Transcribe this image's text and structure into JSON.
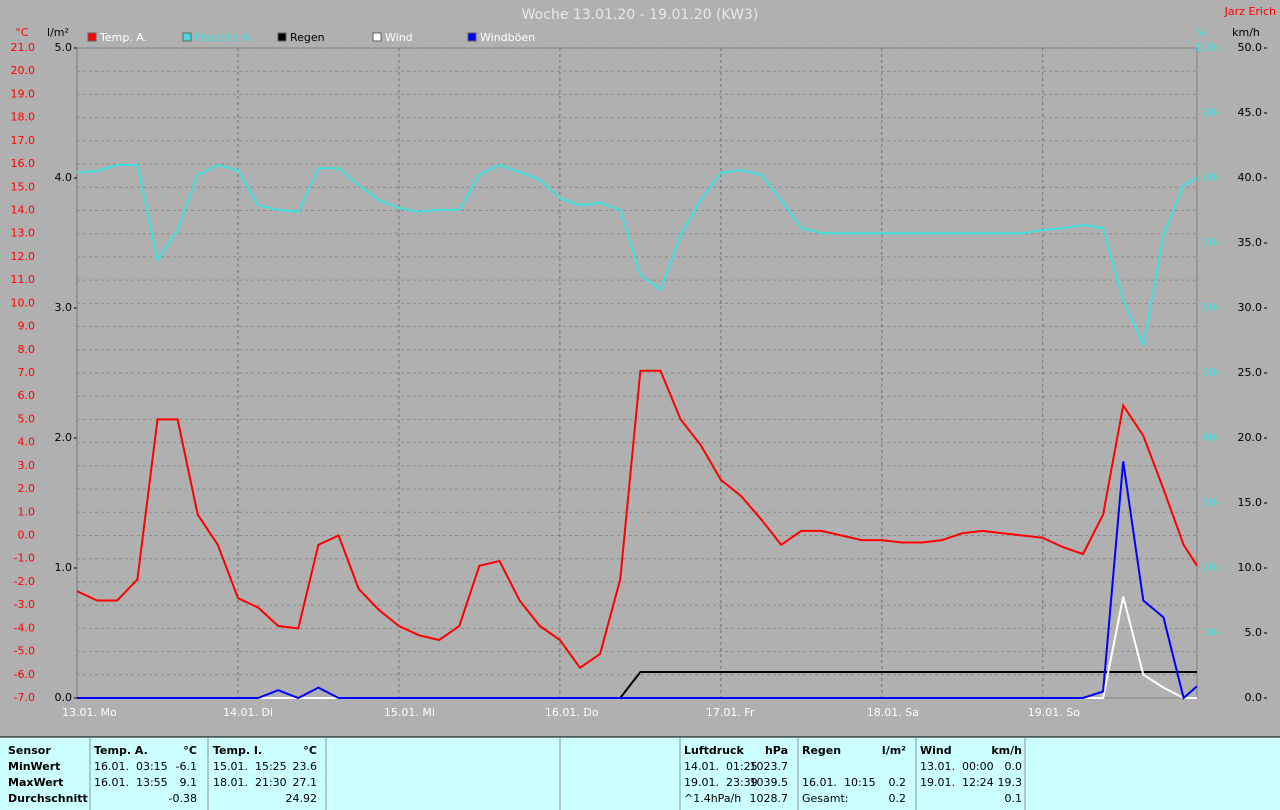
{
  "chart_data": {
    "type": "line",
    "title": "Woche 13.01.20 - 19.01.20 (KW3)",
    "author": "Jarz Erich",
    "y_label": "°C",
    "y3_label": "l/m²",
    "y2_label": "%",
    "y4_label": "km/h",
    "x": [
      0,
      3,
      6,
      9,
      12,
      15,
      18,
      21,
      24,
      27,
      30,
      33,
      36,
      39,
      42,
      45,
      48,
      51,
      54,
      57,
      60,
      63,
      66,
      69,
      72,
      75,
      78,
      81,
      84,
      87,
      90,
      93,
      96,
      99,
      102,
      105,
      108,
      111,
      114,
      117,
      120,
      123,
      126,
      129,
      132,
      135,
      138,
      141,
      144,
      147,
      150,
      153,
      156,
      159,
      162,
      165,
      167
    ],
    "xlim": [
      0,
      167
    ],
    "xticks": [
      {
        "value": 0,
        "label": "13.01. Mo"
      },
      {
        "value": 24,
        "label": "14.01. Di"
      },
      {
        "value": 48,
        "label": "15.01. Mi"
      },
      {
        "value": 72,
        "label": "16.01. Do"
      },
      {
        "value": 96,
        "label": "17.01. Fr"
      },
      {
        "value": 120,
        "label": "18.01. Sa"
      },
      {
        "value": 144,
        "label": "19.01. So"
      }
    ],
    "ylim": [
      -7,
      21
    ],
    "yticks": [
      {
        "value": -7,
        "label": "-7.0"
      },
      {
        "value": -6,
        "label": "-6.0"
      },
      {
        "value": -5,
        "label": "-5.0"
      },
      {
        "value": -4,
        "label": "-4.0"
      },
      {
        "value": -3,
        "label": "-3.0"
      },
      {
        "value": -2,
        "label": "-2.0"
      },
      {
        "value": -1,
        "label": "-1.0"
      },
      {
        "value": 0,
        "label": "0.0"
      },
      {
        "value": 1,
        "label": "1.0"
      },
      {
        "value": 2,
        "label": "2.0"
      },
      {
        "value": 3,
        "label": "3.0"
      },
      {
        "value": 4,
        "label": "4.0"
      },
      {
        "value": 5,
        "label": "5.0"
      },
      {
        "value": 6,
        "label": "6.0"
      },
      {
        "value": 7,
        "label": "7.0"
      },
      {
        "value": 8,
        "label": "8.0"
      },
      {
        "value": 9,
        "label": "9.0"
      },
      {
        "value": 10,
        "label": "10.0"
      },
      {
        "value": 11,
        "label": "11.0"
      },
      {
        "value": 12,
        "label": "12.0"
      },
      {
        "value": 13,
        "label": "13.0"
      },
      {
        "value": 14,
        "label": "14.0"
      },
      {
        "value": 15,
        "label": "15.0"
      },
      {
        "value": 16,
        "label": "16.0"
      },
      {
        "value": 17,
        "label": "17.0"
      },
      {
        "value": 18,
        "label": "18.0"
      },
      {
        "value": 19,
        "label": "19.0"
      },
      {
        "value": 20,
        "label": "20.0"
      },
      {
        "value": 21,
        "label": "21.0"
      }
    ],
    "y2lim": [
      0,
      100
    ],
    "y2ticks": [
      10,
      20,
      30,
      40,
      50,
      60,
      70,
      80,
      90,
      100
    ],
    "y3lim": [
      0,
      5
    ],
    "y3ticks": [
      {
        "value": 0,
        "label": "0.0"
      },
      {
        "value": 1,
        "label": "1.0"
      },
      {
        "value": 2,
        "label": "2.0"
      },
      {
        "value": 3,
        "label": "3.0"
      },
      {
        "value": 4,
        "label": "4.0"
      },
      {
        "value": 5,
        "label": "5.0"
      }
    ],
    "y4lim": [
      0,
      50
    ],
    "y4ticks": [
      {
        "value": 0,
        "label": "0.0"
      },
      {
        "value": 5,
        "label": "5.0"
      },
      {
        "value": 10,
        "label": "10.0"
      },
      {
        "value": 15,
        "label": "15.0"
      },
      {
        "value": 20,
        "label": "20.0"
      },
      {
        "value": 25,
        "label": "25.0"
      },
      {
        "value": 30,
        "label": "30.0"
      },
      {
        "value": 35,
        "label": "35.0"
      },
      {
        "value": 40,
        "label": "40.0"
      },
      {
        "value": 45,
        "label": "45.0"
      },
      {
        "value": 50,
        "label": "50.0"
      }
    ],
    "grid": true,
    "series": [
      {
        "name": "Temp. A.",
        "color": "#ff0000",
        "axis": "y",
        "values": [
          -2.4,
          -2.8,
          -2.8,
          -1.9,
          5.0,
          5.0,
          0.9,
          -0.4,
          -2.7,
          -3.1,
          -3.9,
          -4.0,
          -0.4,
          0.0,
          -2.3,
          -3.2,
          -3.9,
          -4.3,
          -4.5,
          -3.9,
          -1.3,
          -1.1,
          -2.8,
          -3.9,
          -4.5,
          -5.7,
          -5.1,
          -1.9,
          7.1,
          7.1,
          5.0,
          3.9,
          2.4,
          1.7,
          0.7,
          -0.4,
          0.2,
          0.2,
          0.0,
          -0.2,
          -0.2,
          -0.3,
          -0.3,
          -0.2,
          0.1,
          0.2,
          0.1,
          0.0,
          -0.1,
          -0.5,
          -0.8,
          0.9,
          5.6,
          4.3,
          2.0,
          -0.4,
          -1.3
        ]
      },
      {
        "name": "Feuchte A.",
        "color": "#40e0e0",
        "axis": "y2",
        "values": [
          80.8,
          81.1,
          82.0,
          82.0,
          67.4,
          72.0,
          80.5,
          82.0,
          81.2,
          75.8,
          75.1,
          74.8,
          81.5,
          81.5,
          78.9,
          76.6,
          75.4,
          74.8,
          75.1,
          75.1,
          80.5,
          82.0,
          80.9,
          79.7,
          76.9,
          75.8,
          76.2,
          75.1,
          65.1,
          62.8,
          71.2,
          76.6,
          80.8,
          81.2,
          80.5,
          76.6,
          72.3,
          71.5,
          71.5,
          71.5,
          71.5,
          71.5,
          71.5,
          71.5,
          71.5,
          71.5,
          71.5,
          71.5,
          72.0,
          72.3,
          72.8,
          72.3,
          61.2,
          54.3,
          71.2,
          78.9,
          80.0
        ]
      },
      {
        "name": "Regen",
        "color": "#000000",
        "axis": "y3",
        "values": [
          0,
          0,
          0,
          0,
          0,
          0,
          0,
          0,
          0,
          0,
          0,
          0,
          0,
          0,
          0,
          0,
          0,
          0,
          0,
          0,
          0,
          0,
          0,
          0,
          0,
          0,
          0,
          0,
          0.2,
          0.2,
          0.2,
          0.2,
          0.2,
          0.2,
          0.2,
          0.2,
          0.2,
          0.2,
          0.2,
          0.2,
          0.2,
          0.2,
          0.2,
          0.2,
          0.2,
          0.2,
          0.2,
          0.2,
          0.2,
          0.2,
          0.2,
          0.2,
          0.2,
          0.2,
          0.2,
          0.2,
          0.2
        ]
      },
      {
        "name": "Wind",
        "color": "#ffffff",
        "axis": "y4",
        "values": [
          0,
          0,
          0,
          0,
          0,
          0,
          0,
          0,
          0,
          0,
          0,
          0,
          0,
          0,
          0,
          0,
          0,
          0,
          0,
          0,
          0,
          0,
          0,
          0,
          0,
          0,
          0,
          0,
          0,
          0,
          0,
          0,
          0,
          0,
          0,
          0,
          0,
          0,
          0,
          0,
          0,
          0,
          0,
          0,
          0,
          0,
          0,
          0,
          0,
          0,
          0,
          0,
          7.8,
          1.8,
          0.8,
          0,
          0
        ]
      },
      {
        "name": "Windböen",
        "color": "#0000ff",
        "axis": "y4",
        "values": [
          0,
          0,
          0,
          0,
          0,
          0,
          0,
          0,
          0,
          0,
          0.6,
          0,
          0.8,
          0,
          0,
          0,
          0,
          0,
          0,
          0,
          0,
          0,
          0,
          0,
          0,
          0,
          0,
          0,
          0,
          0,
          0,
          0,
          0,
          0,
          0,
          0,
          0,
          0,
          0,
          0,
          0,
          0,
          0,
          0,
          0,
          0,
          0,
          0,
          0,
          0,
          0,
          0.5,
          18.2,
          7.5,
          6.2,
          0,
          0.9
        ]
      }
    ]
  },
  "stats": {
    "header": "Sensor",
    "row_labels": [
      "MinWert",
      "MaxWert",
      "Durchschnitt"
    ],
    "columns": [
      {
        "title": "Temp. A.",
        "unit": "°C",
        "rows": [
          [
            "16.01.  03:15",
            "-6.1"
          ],
          [
            "16.01.  13:55",
            "9.1"
          ],
          [
            null,
            "-0.38"
          ]
        ]
      },
      {
        "title": "Temp. I.",
        "unit": "°C",
        "rows": [
          [
            "15.01.  15:25",
            "23.6"
          ],
          [
            "18.01.  21:30",
            "27.1"
          ],
          [
            null,
            "24.92"
          ]
        ]
      },
      {
        "title": "Luftdruck",
        "unit": "hPa",
        "rows": [
          [
            "14.01.  01:25",
            "1023.7"
          ],
          [
            "19.01.  23:39",
            "1039.5"
          ],
          [
            "^1.4hPa/h",
            "1028.7"
          ]
        ]
      },
      {
        "title": "Regen",
        "unit": "l/m²",
        "rows": [
          [
            null,
            null
          ],
          [
            "16.01.  10:15",
            "0.2"
          ],
          [
            "Gesamt:",
            "0.2"
          ]
        ]
      },
      {
        "title": "Wind",
        "unit": "km/h",
        "rows": [
          [
            "13.01.  00:00",
            "0.0"
          ],
          [
            "19.01.  12:24",
            "19.3"
          ],
          [
            null,
            "0.1"
          ]
        ]
      }
    ]
  }
}
